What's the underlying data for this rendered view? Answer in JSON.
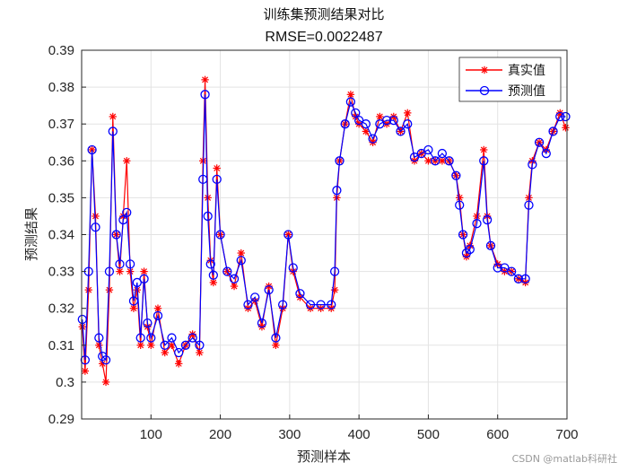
{
  "chart_data": {
    "type": "line",
    "title": "训练集预测结果对比",
    "subtitle": "RMSE=0.0022487",
    "xlabel": "预测样本",
    "ylabel": "预测结果",
    "xlim": [
      0,
      700
    ],
    "ylim": [
      0.29,
      0.39
    ],
    "xticks": [
      100,
      200,
      300,
      400,
      500,
      600,
      700
    ],
    "yticks": [
      0.29,
      0.3,
      0.31,
      0.32,
      0.33,
      0.34,
      0.35,
      0.36,
      0.37,
      0.38,
      0.39
    ],
    "xtick_labels": [
      "100",
      "200",
      "300",
      "400",
      "500",
      "600",
      "700"
    ],
    "ytick_labels": [
      "0.29",
      "0.3",
      "0.31",
      "0.32",
      "0.33",
      "0.34",
      "0.35",
      "0.36",
      "0.37",
      "0.38",
      "0.39"
    ],
    "grid": true,
    "legend_position": "top-right",
    "series": [
      {
        "name": "真实值",
        "color": "#ff0000",
        "marker": "asterisk",
        "x": [
          1,
          5,
          10,
          15,
          20,
          25,
          30,
          35,
          40,
          45,
          50,
          55,
          60,
          65,
          70,
          75,
          80,
          85,
          90,
          95,
          100,
          110,
          120,
          130,
          140,
          150,
          160,
          170,
          175,
          178,
          182,
          186,
          190,
          195,
          200,
          210,
          220,
          230,
          240,
          250,
          260,
          270,
          280,
          290,
          298,
          305,
          315,
          330,
          345,
          360,
          365,
          368,
          372,
          380,
          388,
          395,
          400,
          410,
          420,
          430,
          440,
          450,
          460,
          470,
          480,
          490,
          500,
          510,
          520,
          530,
          540,
          545,
          550,
          555,
          560,
          570,
          580,
          585,
          590,
          600,
          610,
          620,
          630,
          640,
          645,
          650,
          660,
          670,
          680,
          690,
          698
        ],
        "values": [
          0.315,
          0.303,
          0.325,
          0.363,
          0.345,
          0.31,
          0.305,
          0.3,
          0.325,
          0.372,
          0.34,
          0.33,
          0.345,
          0.36,
          0.33,
          0.32,
          0.325,
          0.31,
          0.33,
          0.315,
          0.31,
          0.32,
          0.308,
          0.31,
          0.305,
          0.31,
          0.313,
          0.308,
          0.36,
          0.382,
          0.35,
          0.333,
          0.327,
          0.358,
          0.34,
          0.33,
          0.326,
          0.335,
          0.32,
          0.322,
          0.315,
          0.326,
          0.31,
          0.32,
          0.34,
          0.33,
          0.323,
          0.32,
          0.32,
          0.32,
          0.325,
          0.35,
          0.36,
          0.37,
          0.378,
          0.372,
          0.37,
          0.368,
          0.365,
          0.372,
          0.37,
          0.372,
          0.368,
          0.373,
          0.36,
          0.362,
          0.36,
          0.36,
          0.36,
          0.36,
          0.356,
          0.35,
          0.34,
          0.334,
          0.337,
          0.345,
          0.363,
          0.345,
          0.337,
          0.332,
          0.33,
          0.33,
          0.328,
          0.327,
          0.35,
          0.36,
          0.365,
          0.363,
          0.368,
          0.373,
          0.369
        ]
      },
      {
        "name": "预测值",
        "color": "#0000ff",
        "marker": "circle",
        "x": [
          1,
          5,
          10,
          15,
          20,
          25,
          30,
          35,
          40,
          45,
          50,
          55,
          60,
          65,
          70,
          75,
          80,
          85,
          90,
          95,
          100,
          110,
          120,
          130,
          140,
          150,
          160,
          170,
          175,
          178,
          182,
          186,
          190,
          195,
          200,
          210,
          220,
          230,
          240,
          250,
          260,
          270,
          280,
          290,
          298,
          305,
          315,
          330,
          345,
          360,
          365,
          368,
          372,
          380,
          388,
          395,
          400,
          410,
          420,
          430,
          440,
          450,
          460,
          470,
          480,
          490,
          500,
          510,
          520,
          530,
          540,
          545,
          550,
          555,
          560,
          570,
          580,
          585,
          590,
          600,
          610,
          620,
          630,
          640,
          645,
          650,
          660,
          670,
          680,
          690,
          698
        ],
        "values": [
          0.317,
          0.306,
          0.33,
          0.363,
          0.342,
          0.312,
          0.307,
          0.306,
          0.33,
          0.368,
          0.34,
          0.332,
          0.344,
          0.346,
          0.332,
          0.322,
          0.327,
          0.312,
          0.328,
          0.316,
          0.312,
          0.318,
          0.31,
          0.312,
          0.308,
          0.31,
          0.312,
          0.31,
          0.355,
          0.378,
          0.345,
          0.332,
          0.329,
          0.355,
          0.34,
          0.33,
          0.328,
          0.333,
          0.321,
          0.323,
          0.316,
          0.325,
          0.312,
          0.321,
          0.34,
          0.331,
          0.324,
          0.321,
          0.321,
          0.321,
          0.33,
          0.352,
          0.36,
          0.37,
          0.376,
          0.373,
          0.371,
          0.37,
          0.366,
          0.37,
          0.371,
          0.371,
          0.368,
          0.37,
          0.361,
          0.362,
          0.363,
          0.36,
          0.362,
          0.36,
          0.356,
          0.348,
          0.34,
          0.335,
          0.336,
          0.343,
          0.36,
          0.344,
          0.337,
          0.331,
          0.331,
          0.33,
          0.328,
          0.328,
          0.348,
          0.359,
          0.365,
          0.362,
          0.368,
          0.372,
          0.372
        ]
      }
    ]
  },
  "watermark": "CSDN @matlab科研社"
}
